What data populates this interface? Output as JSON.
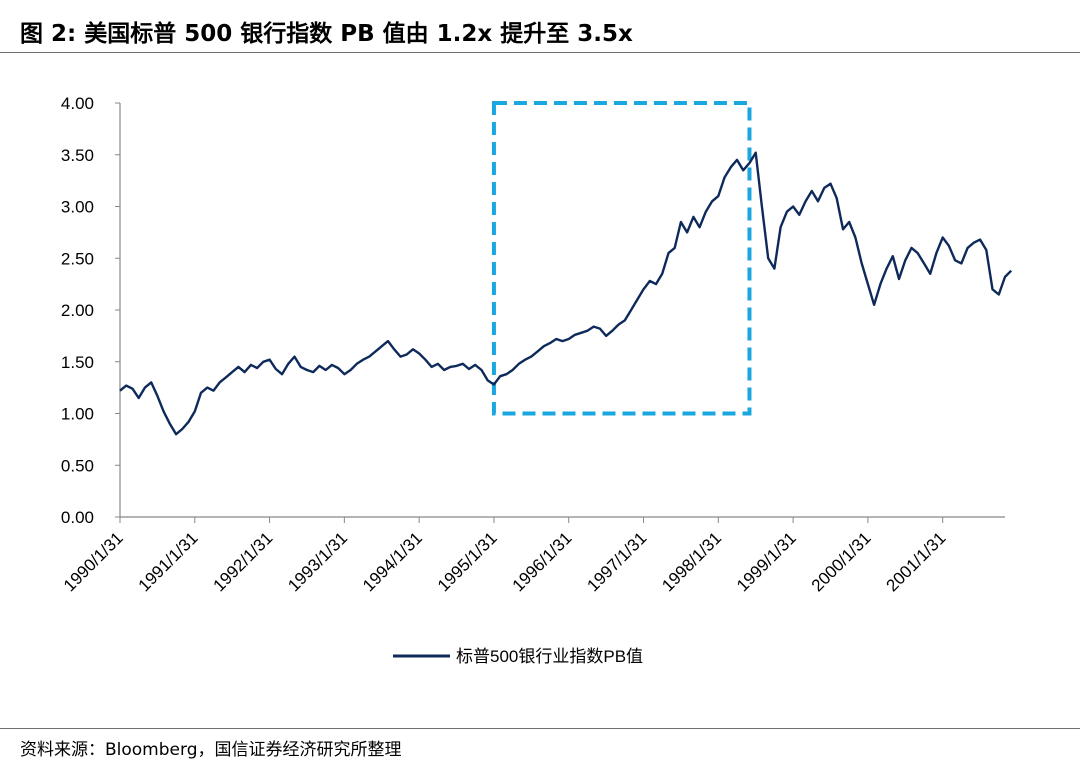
{
  "figure": {
    "title": "图 2:  美国标普 500 银行指数 PB 值由 1.2x 提升至 3.5x",
    "source": "资料来源：Bloomberg，国信证券经济研究所整理"
  },
  "chart_data": {
    "type": "line",
    "title": "",
    "xlabel": "",
    "ylabel": "",
    "ylim": [
      0,
      4
    ],
    "y_ticks": [
      "0.00",
      "0.50",
      "1.00",
      "1.50",
      "2.00",
      "2.50",
      "3.00",
      "3.50",
      "4.00"
    ],
    "x_ticks": [
      "1990/1/31",
      "1991/1/31",
      "1992/1/31",
      "1993/1/31",
      "1994/1/31",
      "1995/1/31",
      "1996/1/31",
      "1997/1/31",
      "1998/1/31",
      "1999/1/31",
      "2000/1/31",
      "2001/1/31"
    ],
    "x_range": [
      "1990/1/31",
      "2001/11/30"
    ],
    "grid": false,
    "legend_position": "bottom",
    "series": [
      {
        "name": "标普500银行业指数PB值",
        "color": "#0e2a5a",
        "points": [
          [
            "1990/01",
            1.22
          ],
          [
            "1990/02",
            1.27
          ],
          [
            "1990/03",
            1.24
          ],
          [
            "1990/04",
            1.15
          ],
          [
            "1990/05",
            1.25
          ],
          [
            "1990/06",
            1.3
          ],
          [
            "1990/07",
            1.17
          ],
          [
            "1990/08",
            1.02
          ],
          [
            "1990/09",
            0.9
          ],
          [
            "1990/10",
            0.8
          ],
          [
            "1990/11",
            0.85
          ],
          [
            "1990/12",
            0.92
          ],
          [
            "1991/01",
            1.02
          ],
          [
            "1991/02",
            1.2
          ],
          [
            "1991/03",
            1.25
          ],
          [
            "1991/04",
            1.22
          ],
          [
            "1991/05",
            1.3
          ],
          [
            "1991/06",
            1.35
          ],
          [
            "1991/07",
            1.4
          ],
          [
            "1991/08",
            1.45
          ],
          [
            "1991/09",
            1.4
          ],
          [
            "1991/10",
            1.47
          ],
          [
            "1991/11",
            1.44
          ],
          [
            "1991/12",
            1.5
          ],
          [
            "1992/01",
            1.52
          ],
          [
            "1992/02",
            1.43
          ],
          [
            "1992/03",
            1.38
          ],
          [
            "1992/04",
            1.48
          ],
          [
            "1992/05",
            1.55
          ],
          [
            "1992/06",
            1.45
          ],
          [
            "1992/07",
            1.42
          ],
          [
            "1992/08",
            1.4
          ],
          [
            "1992/09",
            1.46
          ],
          [
            "1992/10",
            1.42
          ],
          [
            "1992/11",
            1.47
          ],
          [
            "1992/12",
            1.44
          ],
          [
            "1993/01",
            1.38
          ],
          [
            "1993/02",
            1.42
          ],
          [
            "1993/03",
            1.48
          ],
          [
            "1993/04",
            1.52
          ],
          [
            "1993/05",
            1.55
          ],
          [
            "1993/06",
            1.6
          ],
          [
            "1993/07",
            1.65
          ],
          [
            "1993/08",
            1.7
          ],
          [
            "1993/09",
            1.62
          ],
          [
            "1993/10",
            1.55
          ],
          [
            "1993/11",
            1.57
          ],
          [
            "1993/12",
            1.62
          ],
          [
            "1994/01",
            1.58
          ],
          [
            "1994/02",
            1.52
          ],
          [
            "1994/03",
            1.45
          ],
          [
            "1994/04",
            1.48
          ],
          [
            "1994/05",
            1.42
          ],
          [
            "1994/06",
            1.45
          ],
          [
            "1994/07",
            1.46
          ],
          [
            "1994/08",
            1.48
          ],
          [
            "1994/09",
            1.43
          ],
          [
            "1994/10",
            1.47
          ],
          [
            "1994/11",
            1.42
          ],
          [
            "1994/12",
            1.32
          ],
          [
            "1995/01",
            1.28
          ],
          [
            "1995/02",
            1.36
          ],
          [
            "1995/03",
            1.38
          ],
          [
            "1995/04",
            1.42
          ],
          [
            "1995/05",
            1.48
          ],
          [
            "1995/06",
            1.52
          ],
          [
            "1995/07",
            1.55
          ],
          [
            "1995/08",
            1.6
          ],
          [
            "1995/09",
            1.65
          ],
          [
            "1995/10",
            1.68
          ],
          [
            "1995/11",
            1.72
          ],
          [
            "1995/12",
            1.7
          ],
          [
            "1996/01",
            1.72
          ],
          [
            "1996/02",
            1.76
          ],
          [
            "1996/03",
            1.78
          ],
          [
            "1996/04",
            1.8
          ],
          [
            "1996/05",
            1.84
          ],
          [
            "1996/06",
            1.82
          ],
          [
            "1996/07",
            1.75
          ],
          [
            "1996/08",
            1.8
          ],
          [
            "1996/09",
            1.86
          ],
          [
            "1996/10",
            1.9
          ],
          [
            "1996/11",
            2.0
          ],
          [
            "1996/12",
            2.1
          ],
          [
            "1997/01",
            2.2
          ],
          [
            "1997/02",
            2.28
          ],
          [
            "1997/03",
            2.25
          ],
          [
            "1997/04",
            2.35
          ],
          [
            "1997/05",
            2.55
          ],
          [
            "1997/06",
            2.6
          ],
          [
            "1997/07",
            2.85
          ],
          [
            "1997/08",
            2.75
          ],
          [
            "1997/09",
            2.9
          ],
          [
            "1997/10",
            2.8
          ],
          [
            "1997/11",
            2.95
          ],
          [
            "1997/12",
            3.05
          ],
          [
            "1998/01",
            3.1
          ],
          [
            "1998/02",
            3.28
          ],
          [
            "1998/03",
            3.38
          ],
          [
            "1998/04",
            3.45
          ],
          [
            "1998/05",
            3.35
          ],
          [
            "1998/06",
            3.42
          ],
          [
            "1998/07",
            3.52
          ],
          [
            "1998/08",
            3.0
          ],
          [
            "1998/09",
            2.5
          ],
          [
            "1998/10",
            2.4
          ],
          [
            "1998/11",
            2.8
          ],
          [
            "1998/12",
            2.95
          ],
          [
            "1999/01",
            3.0
          ],
          [
            "1999/02",
            2.92
          ],
          [
            "1999/03",
            3.05
          ],
          [
            "1999/04",
            3.15
          ],
          [
            "1999/05",
            3.05
          ],
          [
            "1999/06",
            3.18
          ],
          [
            "1999/07",
            3.22
          ],
          [
            "1999/08",
            3.08
          ],
          [
            "1999/09",
            2.78
          ],
          [
            "1999/10",
            2.85
          ],
          [
            "1999/11",
            2.7
          ],
          [
            "1999/12",
            2.45
          ],
          [
            "2000/01",
            2.25
          ],
          [
            "2000/02",
            2.05
          ],
          [
            "2000/03",
            2.25
          ],
          [
            "2000/04",
            2.4
          ],
          [
            "2000/05",
            2.52
          ],
          [
            "2000/06",
            2.3
          ],
          [
            "2000/07",
            2.48
          ],
          [
            "2000/08",
            2.6
          ],
          [
            "2000/09",
            2.55
          ],
          [
            "2000/10",
            2.45
          ],
          [
            "2000/11",
            2.35
          ],
          [
            "2000/12",
            2.55
          ],
          [
            "2001/01",
            2.7
          ],
          [
            "2001/02",
            2.62
          ],
          [
            "2001/03",
            2.48
          ],
          [
            "2001/04",
            2.45
          ],
          [
            "2001/05",
            2.6
          ],
          [
            "2001/06",
            2.65
          ],
          [
            "2001/07",
            2.68
          ],
          [
            "2001/08",
            2.58
          ],
          [
            "2001/09",
            2.2
          ],
          [
            "2001/10",
            2.15
          ],
          [
            "2001/11",
            2.32
          ],
          [
            "2001/12",
            2.38
          ]
        ]
      }
    ],
    "annotations": [
      {
        "type": "dashed-rectangle",
        "color": "#1aa7e0",
        "x_start": "1995/01",
        "x_end": "1998/06",
        "y_start": 1.0,
        "y_end": 4.0
      }
    ]
  }
}
